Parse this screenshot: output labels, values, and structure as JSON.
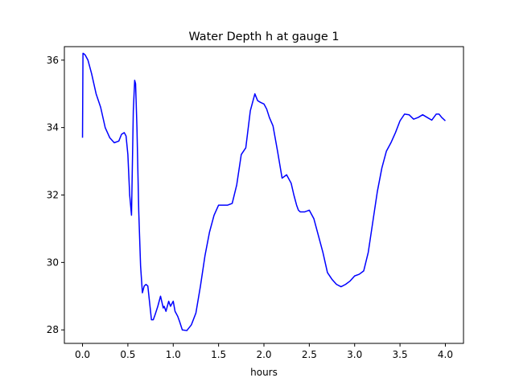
{
  "chart_data": {
    "type": "line",
    "title": "Water Depth h at gauge 1",
    "xlabel": "hours",
    "ylabel": "",
    "xlim": [
      -0.2,
      4.2
    ],
    "ylim": [
      27.6,
      36.4
    ],
    "xticks": [
      0.0,
      0.5,
      1.0,
      1.5,
      2.0,
      2.5,
      3.0,
      3.5,
      4.0
    ],
    "xtick_labels": [
      "0.0",
      "0.5",
      "1.0",
      "1.5",
      "2.0",
      "2.5",
      "3.0",
      "3.5",
      "4.0"
    ],
    "yticks": [
      28,
      30,
      32,
      34,
      36
    ],
    "ytick_labels": [
      "28",
      "30",
      "32",
      "34",
      "36"
    ],
    "grid": false,
    "legend": "none",
    "series": [
      {
        "color": "#0000ff",
        "x": [
          0.0,
          0.005,
          0.01,
          0.03,
          0.06,
          0.1,
          0.15,
          0.2,
          0.25,
          0.3,
          0.35,
          0.4,
          0.43,
          0.46,
          0.48,
          0.5,
          0.52,
          0.54,
          0.56,
          0.575,
          0.585,
          0.6,
          0.62,
          0.64,
          0.66,
          0.68,
          0.7,
          0.72,
          0.74,
          0.76,
          0.78,
          0.8,
          0.83,
          0.86,
          0.89,
          0.9,
          0.92,
          0.95,
          0.97,
          1.0,
          1.02,
          1.05,
          1.07,
          1.1,
          1.15,
          1.2,
          1.25,
          1.3,
          1.35,
          1.4,
          1.45,
          1.5,
          1.55,
          1.6,
          1.65,
          1.7,
          1.75,
          1.8,
          1.85,
          1.9,
          1.93,
          1.96,
          2.0,
          2.03,
          2.06,
          2.1,
          2.15,
          2.2,
          2.25,
          2.3,
          2.33,
          2.36,
          2.38,
          2.4,
          2.45,
          2.5,
          2.55,
          2.6,
          2.65,
          2.7,
          2.75,
          2.8,
          2.85,
          2.9,
          2.95,
          3.0,
          3.05,
          3.1,
          3.15,
          3.2,
          3.25,
          3.3,
          3.35,
          3.4,
          3.45,
          3.5,
          3.55,
          3.6,
          3.65,
          3.7,
          3.75,
          3.8,
          3.85,
          3.9,
          3.93,
          3.96,
          4.0
        ],
        "y": [
          33.7,
          36.2,
          36.2,
          36.15,
          36.0,
          35.6,
          35.0,
          34.6,
          34.0,
          33.7,
          33.55,
          33.6,
          33.8,
          33.85,
          33.75,
          33.2,
          32.0,
          31.4,
          34.5,
          35.4,
          35.3,
          34.0,
          31.5,
          29.9,
          29.1,
          29.3,
          29.35,
          29.3,
          28.8,
          28.3,
          28.3,
          28.45,
          28.7,
          29.0,
          28.65,
          28.7,
          28.55,
          28.85,
          28.7,
          28.85,
          28.55,
          28.4,
          28.25,
          28.0,
          27.98,
          28.15,
          28.5,
          29.3,
          30.2,
          30.9,
          31.4,
          31.7,
          31.7,
          31.7,
          31.75,
          32.3,
          33.2,
          33.4,
          34.5,
          35.0,
          34.8,
          34.75,
          34.7,
          34.55,
          34.3,
          34.05,
          33.3,
          32.5,
          32.6,
          32.35,
          32.0,
          31.7,
          31.55,
          31.5,
          31.5,
          31.55,
          31.3,
          30.8,
          30.3,
          29.7,
          29.5,
          29.35,
          29.28,
          29.35,
          29.45,
          29.6,
          29.65,
          29.75,
          30.3,
          31.2,
          32.1,
          32.8,
          33.3,
          33.55,
          33.85,
          34.2,
          34.4,
          34.38,
          34.25,
          34.3,
          34.38,
          34.3,
          34.22,
          34.4,
          34.4,
          34.3,
          34.2
        ]
      }
    ]
  }
}
